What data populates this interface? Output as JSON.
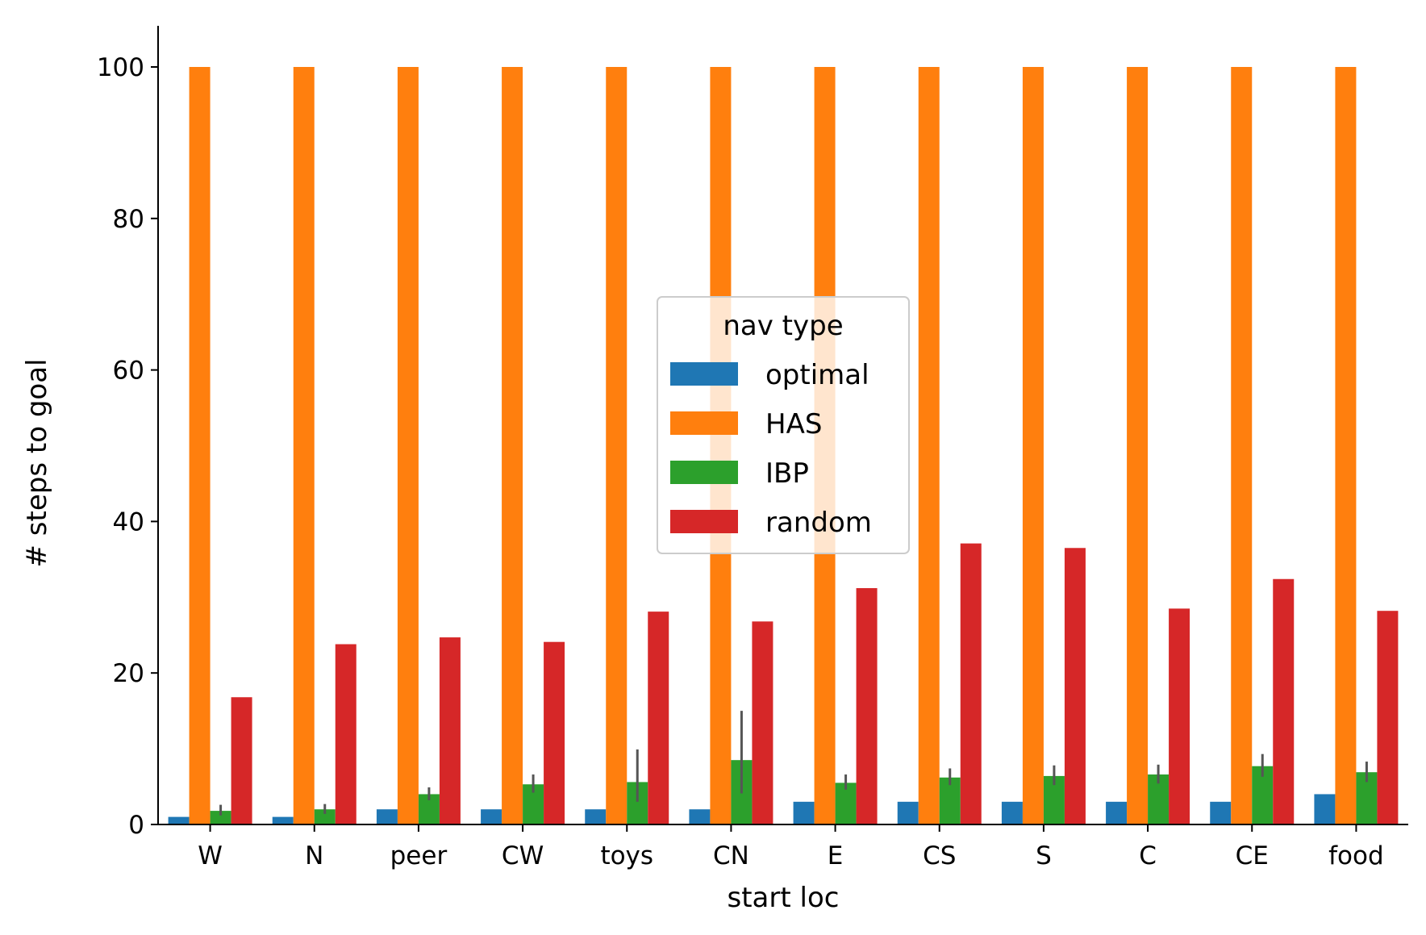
{
  "chart_data": {
    "type": "bar",
    "title": "",
    "xlabel": "start loc",
    "ylabel": "# steps to goal",
    "ylim": [
      0,
      105
    ],
    "yticks": [
      0,
      20,
      40,
      60,
      80,
      100
    ],
    "grid": false,
    "legend": {
      "title": "nav type",
      "placement": "center"
    },
    "categories": [
      "W",
      "N",
      "peer",
      "CW",
      "toys",
      "CN",
      "E",
      "CS",
      "S",
      "C",
      "CE",
      "food"
    ],
    "series": [
      {
        "name": "optimal",
        "color": "#1f77b4",
        "values": [
          1,
          1,
          2,
          2,
          2,
          2,
          3,
          3,
          3,
          3,
          3,
          4
        ],
        "error": [
          null,
          null,
          null,
          null,
          null,
          null,
          null,
          null,
          null,
          null,
          null,
          null
        ]
      },
      {
        "name": "HAS",
        "color": "#ff7f0e",
        "values": [
          100,
          100,
          100,
          100,
          100,
          100,
          100,
          100,
          100,
          100,
          100,
          100
        ],
        "error": [
          null,
          null,
          null,
          null,
          null,
          null,
          null,
          null,
          null,
          null,
          null,
          null
        ]
      },
      {
        "name": "IBP",
        "color": "#2ca02c",
        "values": [
          1.8,
          2.0,
          4.0,
          5.3,
          5.6,
          8.5,
          5.5,
          6.2,
          6.4,
          6.6,
          7.7,
          6.9
        ],
        "error": [
          [
            1.2,
            2.6
          ],
          [
            1.4,
            2.7
          ],
          [
            3.2,
            4.9
          ],
          [
            4.2,
            6.6
          ],
          [
            3.0,
            9.9
          ],
          [
            4.1,
            15.0
          ],
          [
            4.6,
            6.6
          ],
          [
            5.2,
            7.4
          ],
          [
            5.2,
            7.8
          ],
          [
            5.4,
            7.9
          ],
          [
            6.3,
            9.3
          ],
          [
            5.6,
            8.3
          ]
        ]
      },
      {
        "name": "random",
        "color": "#d62728",
        "values": [
          16.8,
          23.8,
          24.7,
          24.1,
          28.1,
          26.8,
          31.2,
          37.1,
          36.5,
          28.5,
          32.4,
          28.2
        ],
        "error": [
          null,
          null,
          null,
          null,
          null,
          null,
          null,
          null,
          null,
          null,
          null,
          null
        ]
      }
    ]
  }
}
